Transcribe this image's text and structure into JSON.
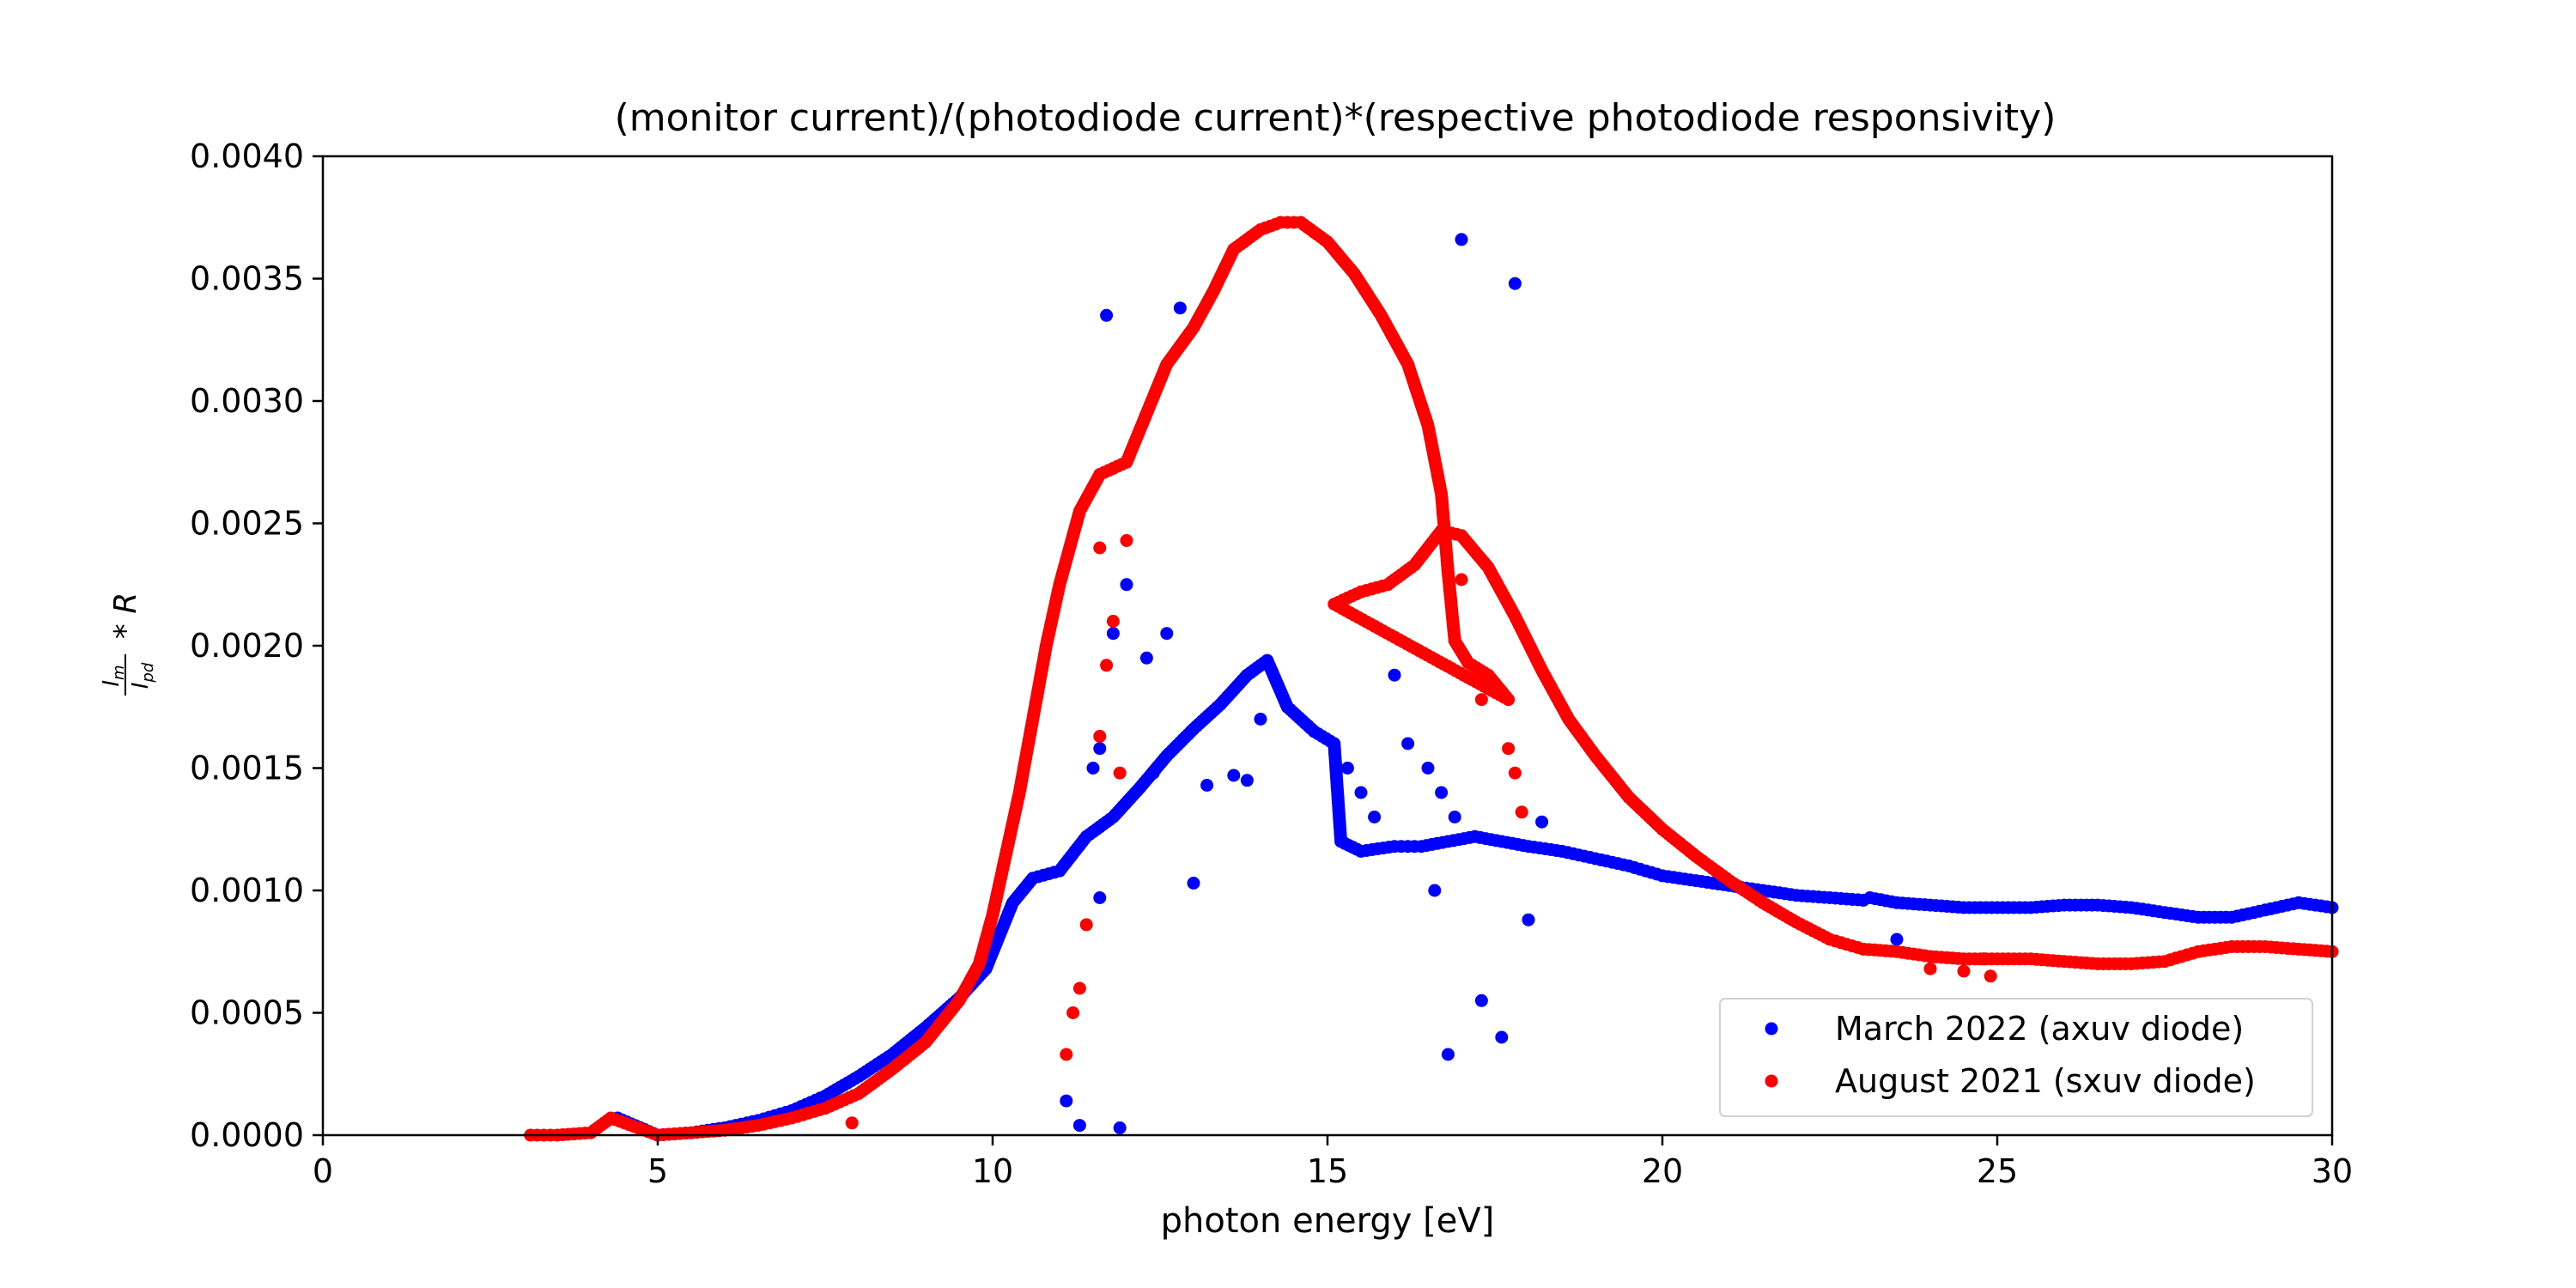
{
  "chart_data": {
    "type": "scatter",
    "title": "(monitor current)/(photodiode current)*(respective photodiode responsivity)",
    "xlabel": "photon energy [eV]",
    "ylabel": "I_m / I_pd * R",
    "ylabel_parts": {
      "num": "I",
      "num_sub": "m",
      "den": "I",
      "den_sub": "pd",
      "rest": "* R"
    },
    "xlim": [
      0,
      30
    ],
    "ylim": [
      0,
      0.004
    ],
    "x_ticks": [
      "0",
      "5",
      "10",
      "15",
      "20",
      "25",
      "30"
    ],
    "y_ticks": [
      "0.0000",
      "0.0005",
      "0.0010",
      "0.0015",
      "0.0020",
      "0.0025",
      "0.0030",
      "0.0035",
      "0.0040"
    ],
    "grid": false,
    "legend_position": "lower-right",
    "series": [
      {
        "name": "March 2022 (axuv diode)",
        "color": "#0000ff",
        "curve_points": [
          [
            4.4,
            7e-05
          ],
          [
            5.0,
            0.0
          ],
          [
            5.5,
            1e-05
          ],
          [
            6.0,
            3e-05
          ],
          [
            6.5,
            6e-05
          ],
          [
            7.0,
            0.0001
          ],
          [
            7.5,
            0.00016
          ],
          [
            8.0,
            0.00024
          ],
          [
            8.5,
            0.00033
          ],
          [
            9.0,
            0.00044
          ],
          [
            9.5,
            0.00056
          ],
          [
            9.9,
            0.00068
          ],
          [
            10.3,
            0.00095
          ],
          [
            10.6,
            0.00105
          ],
          [
            11.0,
            0.00108
          ],
          [
            11.4,
            0.00122
          ],
          [
            11.8,
            0.0013
          ],
          [
            12.2,
            0.00142
          ],
          [
            12.6,
            0.00155
          ],
          [
            13.0,
            0.00166
          ],
          [
            13.4,
            0.00176
          ],
          [
            13.8,
            0.00188
          ],
          [
            14.1,
            0.00194
          ],
          [
            14.4,
            0.00175
          ],
          [
            14.8,
            0.00165
          ],
          [
            15.1,
            0.0016
          ],
          [
            15.2,
            0.0012
          ],
          [
            15.5,
            0.00116
          ],
          [
            16.0,
            0.00118
          ],
          [
            16.4,
            0.00118
          ],
          [
            16.8,
            0.0012
          ],
          [
            17.2,
            0.00122
          ],
          [
            17.6,
            0.0012
          ],
          [
            18.0,
            0.00118
          ],
          [
            18.5,
            0.00116
          ],
          [
            19.0,
            0.00113
          ],
          [
            19.5,
            0.0011
          ],
          [
            20.0,
            0.00106
          ],
          [
            20.5,
            0.00104
          ],
          [
            21.0,
            0.00102
          ],
          [
            21.5,
            0.001
          ],
          [
            22.0,
            0.00098
          ],
          [
            22.5,
            0.00097
          ],
          [
            23.0,
            0.00096
          ],
          [
            23.1,
            0.00097
          ],
          [
            23.5,
            0.00095
          ],
          [
            24.0,
            0.00094
          ],
          [
            24.5,
            0.00093
          ],
          [
            25.0,
            0.00093
          ],
          [
            25.5,
            0.00093
          ],
          [
            26.0,
            0.00094
          ],
          [
            26.5,
            0.00094
          ],
          [
            27.0,
            0.00093
          ],
          [
            27.5,
            0.00091
          ],
          [
            28.0,
            0.00089
          ],
          [
            28.5,
            0.00089
          ],
          [
            29.0,
            0.00092
          ],
          [
            29.5,
            0.00095
          ],
          [
            30.0,
            0.00093
          ]
        ],
        "scatter_points": [
          [
            11.7,
            0.00335
          ],
          [
            12.8,
            0.00338
          ],
          [
            17.0,
            0.00366
          ],
          [
            17.8,
            0.00348
          ],
          [
            12.0,
            0.00225
          ],
          [
            11.8,
            0.00205
          ],
          [
            12.3,
            0.00195
          ],
          [
            12.6,
            0.00205
          ],
          [
            16.0,
            0.00188
          ],
          [
            11.6,
            0.00158
          ],
          [
            11.5,
            0.0015
          ],
          [
            12.4,
            0.00148
          ],
          [
            13.0,
            0.00103
          ],
          [
            11.6,
            0.00097
          ],
          [
            13.2,
            0.00143
          ],
          [
            13.6,
            0.00147
          ],
          [
            13.8,
            0.00145
          ],
          [
            14.0,
            0.0017
          ],
          [
            15.3,
            0.0015
          ],
          [
            15.5,
            0.0014
          ],
          [
            15.7,
            0.0013
          ],
          [
            16.2,
            0.0016
          ],
          [
            16.5,
            0.0015
          ],
          [
            16.7,
            0.0014
          ],
          [
            16.9,
            0.0013
          ],
          [
            16.6,
            0.001
          ],
          [
            18.0,
            0.00088
          ],
          [
            18.2,
            0.00128
          ],
          [
            17.3,
            0.00055
          ],
          [
            17.6,
            0.0004
          ],
          [
            16.8,
            0.00033
          ],
          [
            11.1,
            0.00014
          ],
          [
            11.3,
            4e-05
          ],
          [
            11.9,
            3e-05
          ],
          [
            23.5,
            0.0008
          ],
          [
            24.8,
            0.00072
          ]
        ]
      },
      {
        "name": "August 2021 (sxuv diode)",
        "color": "#ff0000",
        "curve_points": [
          [
            3.1,
            0.0
          ],
          [
            3.5,
            0.0
          ],
          [
            4.0,
            1e-05
          ],
          [
            4.3,
            7e-05
          ],
          [
            5.0,
            0.0
          ],
          [
            5.5,
            1e-05
          ],
          [
            6.0,
            2e-05
          ],
          [
            6.5,
            4e-05
          ],
          [
            7.0,
            7e-05
          ],
          [
            7.5,
            0.00011
          ],
          [
            8.0,
            0.00017
          ],
          [
            8.5,
            0.00027
          ],
          [
            9.0,
            0.00038
          ],
          [
            9.5,
            0.00055
          ],
          [
            9.8,
            0.0007
          ],
          [
            10.0,
            0.0009
          ],
          [
            10.2,
            0.00115
          ],
          [
            10.4,
            0.0014
          ],
          [
            10.6,
            0.0017
          ],
          [
            10.8,
            0.002
          ],
          [
            11.0,
            0.00225
          ],
          [
            11.3,
            0.00255
          ],
          [
            11.6,
            0.0027
          ],
          [
            12.0,
            0.00275
          ],
          [
            12.3,
            0.00295
          ],
          [
            12.6,
            0.00315
          ],
          [
            13.0,
            0.0033
          ],
          [
            13.3,
            0.00345
          ],
          [
            13.6,
            0.00362
          ],
          [
            14.0,
            0.0037
          ],
          [
            14.3,
            0.00373
          ],
          [
            14.6,
            0.00373
          ],
          [
            15.0,
            0.00365
          ],
          [
            15.4,
            0.00352
          ],
          [
            15.8,
            0.00335
          ],
          [
            16.2,
            0.00315
          ],
          [
            16.5,
            0.0029
          ],
          [
            16.7,
            0.00262
          ],
          [
            16.8,
            0.0023
          ],
          [
            16.9,
            0.00202
          ],
          [
            17.1,
            0.00193
          ],
          [
            17.4,
            0.00188
          ],
          [
            17.7,
            0.00178
          ],
          [
            15.1,
            0.00217
          ],
          [
            15.5,
            0.00222
          ],
          [
            15.9,
            0.00225
          ],
          [
            16.3,
            0.00233
          ],
          [
            16.7,
            0.00247
          ],
          [
            17.0,
            0.00245
          ],
          [
            17.4,
            0.00232
          ],
          [
            17.8,
            0.00212
          ],
          [
            18.2,
            0.0019
          ],
          [
            18.6,
            0.0017
          ],
          [
            19.0,
            0.00155
          ],
          [
            19.5,
            0.00138
          ],
          [
            20.0,
            0.00125
          ],
          [
            20.5,
            0.00114
          ],
          [
            21.0,
            0.00104
          ],
          [
            21.5,
            0.00095
          ],
          [
            22.0,
            0.00087
          ],
          [
            22.5,
            0.0008
          ],
          [
            23.0,
            0.00076
          ],
          [
            23.5,
            0.00075
          ],
          [
            24.0,
            0.00073
          ],
          [
            24.5,
            0.00072
          ],
          [
            25.0,
            0.00072
          ],
          [
            25.5,
            0.00072
          ],
          [
            26.0,
            0.00071
          ],
          [
            26.5,
            0.0007
          ],
          [
            27.0,
            0.0007
          ],
          [
            27.5,
            0.00071
          ],
          [
            28.0,
            0.00075
          ],
          [
            28.5,
            0.00077
          ],
          [
            29.0,
            0.00077
          ],
          [
            29.5,
            0.00076
          ],
          [
            30.0,
            0.00075
          ]
        ],
        "scatter_points": [
          [
            11.1,
            0.00033
          ],
          [
            11.2,
            0.0005
          ],
          [
            11.3,
            0.0006
          ],
          [
            11.4,
            0.00086
          ],
          [
            11.6,
            0.00163
          ],
          [
            11.7,
            0.00192
          ],
          [
            11.8,
            0.0021
          ],
          [
            11.9,
            0.00148
          ],
          [
            12.0,
            0.00243
          ],
          [
            11.6,
            0.0024
          ],
          [
            17.0,
            0.00227
          ],
          [
            17.3,
            0.00178
          ],
          [
            17.7,
            0.00158
          ],
          [
            17.8,
            0.00148
          ],
          [
            17.9,
            0.00132
          ],
          [
            7.9,
            5e-05
          ],
          [
            24.0,
            0.00068
          ],
          [
            24.5,
            0.00067
          ],
          [
            24.9,
            0.00065
          ]
        ]
      }
    ]
  }
}
